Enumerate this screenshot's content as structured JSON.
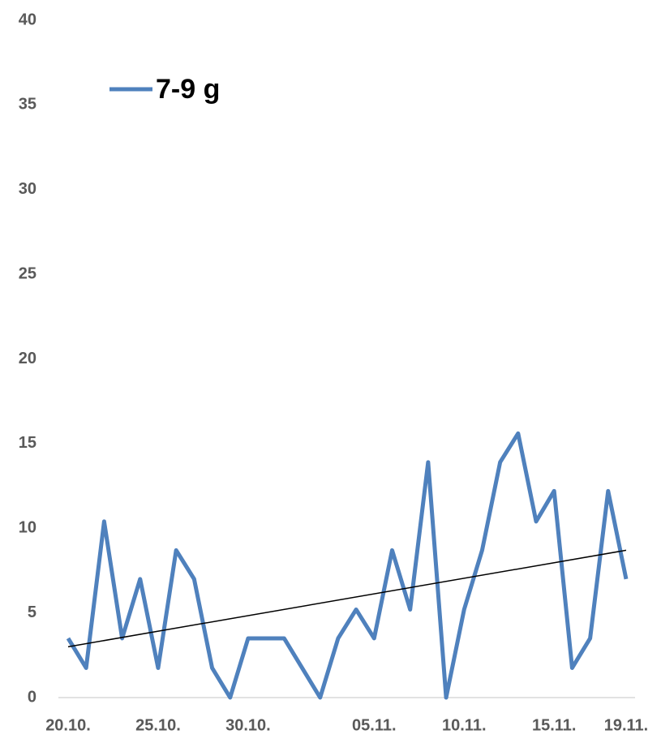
{
  "chart_data": {
    "type": "line",
    "categories": [
      "20.10.",
      null,
      null,
      null,
      null,
      "25.10.",
      null,
      null,
      null,
      null,
      "30.10.",
      null,
      null,
      null,
      null,
      null,
      null,
      "05.11.",
      null,
      null,
      null,
      null,
      "10.11.",
      null,
      null,
      null,
      null,
      "15.11.",
      null,
      null,
      null,
      "19.11."
    ],
    "series": [
      {
        "name": "7-9 g",
        "color": "#4f81bd",
        "values": [
          3.5,
          1.75,
          10.4,
          3.5,
          7,
          1.75,
          8.7,
          7,
          1.75,
          0,
          3.5,
          3.5,
          3.5,
          1.75,
          0,
          3.5,
          5.2,
          3.5,
          8.7,
          5.2,
          13.9,
          0,
          5.2,
          8.7,
          13.9,
          15.6,
          10.4,
          12.2,
          1.75,
          3.5,
          12.2,
          7
        ]
      }
    ],
    "trendline": {
      "color": "#000000",
      "values": [
        3.0,
        8.7
      ]
    },
    "ylim": [
      0,
      40
    ],
    "yticks": [
      0,
      5,
      10,
      15,
      20,
      25,
      30,
      35,
      40
    ],
    "grid": false,
    "legend": "top-left"
  }
}
